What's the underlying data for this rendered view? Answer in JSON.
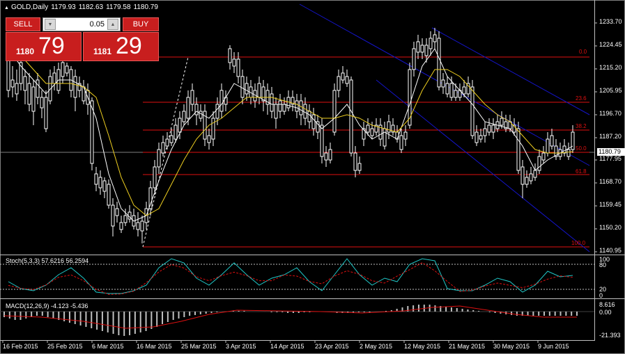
{
  "header": {
    "symbol": "GOLD,Daily",
    "open": "1179.93",
    "high": "1182.63",
    "low": "1179.58",
    "close": "1180.79"
  },
  "trade_panel": {
    "sell_label": "SELL",
    "buy_label": "BUY",
    "volume": "0.05",
    "sell_small": "1180",
    "sell_big": "79",
    "buy_small": "1181",
    "buy_big": "29"
  },
  "price_axis": {
    "ticks": [
      "1233.70",
      "1224.45",
      "1215.20",
      "1205.95",
      "1196.70",
      "1187.20",
      "1177.95",
      "1168.70",
      "1159.45",
      "1150.20",
      "1140.95"
    ],
    "current_price": "1180.79"
  },
  "fib_levels": [
    "0.0",
    "23.6",
    "38.2",
    "50.0",
    "61.8",
    "100.0"
  ],
  "stoch": {
    "label": "Stoch(5,3,3) 57.6216 56.2594",
    "axis": [
      "100",
      "80",
      "20",
      "0"
    ]
  },
  "macd": {
    "label": "MACD(12,26,9) -4.123 -5.436",
    "axis": [
      "8.616",
      "0.00",
      "-21.393"
    ]
  },
  "time_axis": [
    "16 Feb 2015",
    "25 Feb 2015",
    "6 Mar 2015",
    "16 Mar 2015",
    "25 Mar 2015",
    "3 Apr 2015",
    "14 Apr 2015",
    "23 Apr 2015",
    "2 May 2015",
    "12 May 2015",
    "21 May 2015",
    "30 May 2015",
    "9 Jun 2015"
  ],
  "colors": {
    "bull_candle": "#00e5ee",
    "bear_candle": "#ffffff",
    "fib_line": "#e01010",
    "channel": "#1414c8",
    "ma_fast": "#ffffff",
    "ma_slow": "#f0d020",
    "stoch_main": "#20c8c8",
    "stoch_signal": "#e01010",
    "macd_signal": "#e01010"
  }
}
